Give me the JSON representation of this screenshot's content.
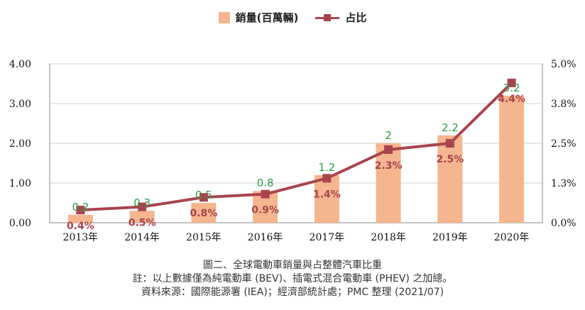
{
  "legend": {
    "bar_label": "銷量(百萬輛)",
    "line_label": "占比"
  },
  "captions": {
    "title": "圖二、全球電動車銷量與占整體汽車比重",
    "note": "註：以上數據僅為純電動車 (BEV)、插電式混合電動車 (PHEV) 之加總。",
    "source": "資料來源：國際能源署 (IEA)；經濟部統計處；PMC 整理 (2021/07)"
  },
  "colors": {
    "bar": "#F5B58F",
    "line": "#A9444E",
    "bar_label": "#2E9B45",
    "line_label": "#A9444E",
    "axis_text": "#111111"
  },
  "chart_data": {
    "type": "bar",
    "categories": [
      "2013年",
      "2014年",
      "2015年",
      "2016年",
      "2017年",
      "2018年",
      "2019年",
      "2020年"
    ],
    "series": [
      {
        "name": "銷量(百萬輛)",
        "type": "bar",
        "axis": "left",
        "values": [
          0.2,
          0.3,
          0.5,
          0.8,
          1.2,
          2,
          2.2,
          3.2
        ],
        "labels": [
          "0.2",
          "0.3",
          "0.5",
          "0.8",
          "1.2",
          "2",
          "2.2",
          "3.2"
        ]
      },
      {
        "name": "占比",
        "type": "line",
        "axis": "right",
        "values": [
          0.4,
          0.5,
          0.8,
          0.9,
          1.4,
          2.3,
          2.5,
          4.4
        ],
        "labels": [
          "0.4%",
          "0.5%",
          "0.8%",
          "0.9%",
          "1.4%",
          "2.3%",
          "2.5%",
          "4.4%"
        ]
      }
    ],
    "y_left": {
      "lim": [
        0,
        4
      ],
      "ticks": [
        0,
        1,
        2,
        3,
        4
      ],
      "tick_labels": [
        "0.00",
        "1.00",
        "2.00",
        "3.00",
        "4.00"
      ]
    },
    "y_right": {
      "lim": [
        0,
        5
      ],
      "ticks": [
        0,
        1.25,
        2.5,
        3.75,
        5
      ],
      "tick_labels": [
        "0.0%",
        "1.3%",
        "2.5%",
        "3.8%",
        "5.0%"
      ]
    },
    "grid": true,
    "legend_position": "top-center"
  }
}
